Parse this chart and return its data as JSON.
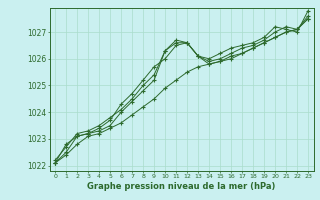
{
  "title": "",
  "xlabel": "Graphe pression niveau de la mer (hPa)",
  "bg_color": "#caf0f0",
  "grid_color": "#aaddcc",
  "line_color": "#2d6a2d",
  "marker": "+",
  "x_ticks": [
    0,
    1,
    2,
    3,
    4,
    5,
    6,
    7,
    8,
    9,
    10,
    11,
    12,
    13,
    14,
    15,
    16,
    17,
    18,
    19,
    20,
    21,
    22,
    23
  ],
  "ylim": [
    1021.8,
    1027.9
  ],
  "yticks": [
    1022,
    1023,
    1024,
    1025,
    1026,
    1027
  ],
  "series": [
    [
      1022.1,
      1022.4,
      1022.8,
      1023.1,
      1023.2,
      1023.4,
      1023.6,
      1023.9,
      1024.2,
      1024.5,
      1024.9,
      1025.2,
      1025.5,
      1025.7,
      1025.8,
      1025.9,
      1026.1,
      1026.2,
      1026.4,
      1026.6,
      1026.8,
      1027.0,
      1027.1,
      1027.5
    ],
    [
      1022.1,
      1022.5,
      1023.1,
      1023.2,
      1023.3,
      1023.5,
      1024.0,
      1024.4,
      1024.8,
      1025.2,
      1026.3,
      1026.6,
      1026.6,
      1026.1,
      1025.8,
      1025.9,
      1026.0,
      1026.2,
      1026.4,
      1026.6,
      1026.8,
      1027.0,
      1027.1,
      1027.5
    ],
    [
      1022.2,
      1022.7,
      1023.2,
      1023.3,
      1023.5,
      1023.8,
      1024.1,
      1024.5,
      1025.0,
      1025.4,
      1026.3,
      1026.7,
      1026.6,
      1026.1,
      1025.9,
      1026.0,
      1026.2,
      1026.4,
      1026.5,
      1026.7,
      1027.0,
      1027.2,
      1027.1,
      1027.6
    ],
    [
      1022.1,
      1022.8,
      1023.1,
      1023.2,
      1023.4,
      1023.7,
      1024.3,
      1024.7,
      1025.2,
      1025.7,
      1026.0,
      1026.5,
      1026.6,
      1026.1,
      1026.0,
      1026.2,
      1026.4,
      1026.5,
      1026.6,
      1026.8,
      1027.2,
      1027.1,
      1027.0,
      1027.8
    ]
  ]
}
